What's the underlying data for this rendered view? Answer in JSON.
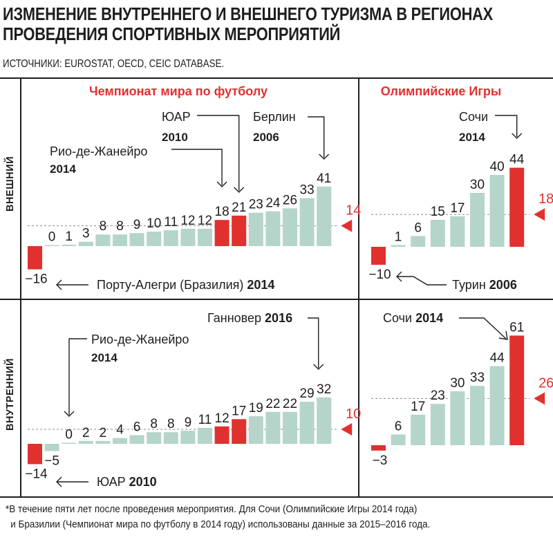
{
  "title": [
    "ИЗМЕНЕНИЕ ВНУТРЕННЕГО И ВНЕШНЕГО ТУРИЗМА В РЕГИОНАХ",
    "ПРОВЕДЕНИЯ СПОРТИВНЫХ МЕРОПРИЯТИЙ"
  ],
  "sources": "ИСТОЧНИКИ: EUROSTAT, OECD, CEIC DATABASE.",
  "row_labels": {
    "top": "ВНЕШНИЙ",
    "bottom": "ВНУТРЕННИЙ"
  },
  "footnote": [
    "*В течение пяти лет после проведения мероприятия. Для Сочи (Олимпийские Игры 2014 года)",
    "и Бразилии (Чемпионат мира по футболу в 2014 году) использованы данные за 2015–2016 года."
  ],
  "colors": {
    "bar": "#b5d5ca",
    "highlight": "#e0312e",
    "text": "#1e1e1e",
    "reference_line": "#8a8a8a"
  },
  "chart_data": [
    {
      "type": "bar",
      "group": "Чемпионат мира по футболу",
      "row": "ВНЕШНИЙ",
      "values": [
        -16,
        0,
        1,
        3,
        8,
        8,
        9,
        10,
        11,
        12,
        12,
        18,
        21,
        23,
        24,
        26,
        33,
        41
      ],
      "highlighted": [
        0,
        11,
        12
      ],
      "average": 14,
      "annotations": [
        {
          "bar": 0,
          "name": "Порту-Алегри (Бразилия)",
          "year": "2014"
        },
        {
          "bar": 11,
          "name": "Рио-де-Жанейро",
          "year": "2014"
        },
        {
          "bar": 12,
          "name": "ЮАР",
          "year": "2010"
        },
        {
          "bar": 17,
          "name": "Берлин",
          "year": "2006"
        }
      ]
    },
    {
      "type": "bar",
      "group": "Олимпийские Игры",
      "row": "ВНЕШНИЙ",
      "values": [
        -10,
        1,
        6,
        15,
        17,
        30,
        40,
        44
      ],
      "highlighted": [
        0,
        7
      ],
      "average": 18,
      "annotations": [
        {
          "bar": 0,
          "name": "Турин",
          "year": "2006"
        },
        {
          "bar": 7,
          "name": "Сочи",
          "year": "2014"
        }
      ]
    },
    {
      "type": "bar",
      "group": "Чемпионат мира по футболу",
      "row": "ВНУТРЕННИЙ",
      "values": [
        -14,
        -5,
        0,
        2,
        2,
        4,
        6,
        8,
        8,
        9,
        11,
        12,
        17,
        19,
        22,
        22,
        29,
        32
      ],
      "highlighted": [
        0,
        11,
        12
      ],
      "average": 10,
      "annotations": [
        {
          "bar": 0,
          "name": "ЮАР",
          "year": "2010"
        },
        {
          "bar": 2,
          "name": "Рио-де-Жанейро",
          "year": "2014"
        },
        {
          "bar": 17,
          "name": "Ганновер",
          "year": "2016"
        }
      ]
    },
    {
      "type": "bar",
      "group": "Олимпийские Игры",
      "row": "ВНУТРЕННИЙ",
      "values": [
        -3,
        6,
        17,
        23,
        30,
        33,
        44,
        61
      ],
      "highlighted": [
        0,
        7
      ],
      "average": 26,
      "annotations": [
        {
          "bar": 7,
          "name": "Сочи",
          "year": "2014"
        }
      ]
    }
  ]
}
